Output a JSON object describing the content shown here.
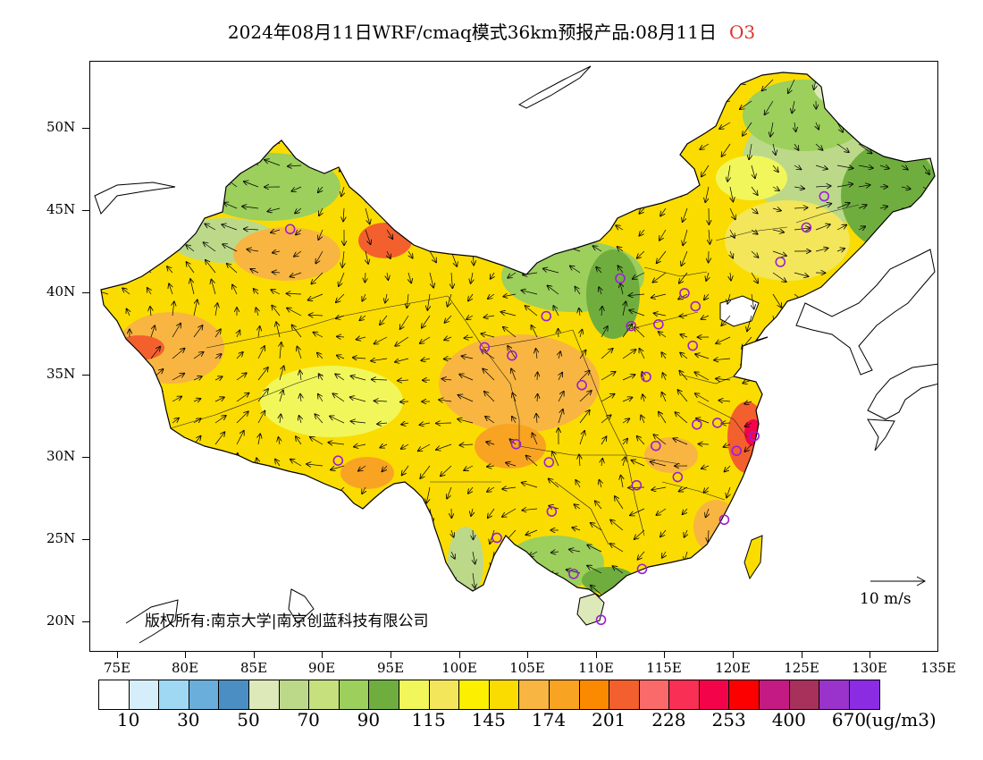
{
  "title": {
    "main": "2024年08月11日WRF/cmaq模式36km预报产品:08月11日",
    "species": "O3"
  },
  "axes": {
    "y_labels": [
      "50N",
      "45N",
      "40N",
      "35N",
      "30N",
      "25N",
      "20N"
    ],
    "x_labels": [
      "75E",
      "80E",
      "85E",
      "90E",
      "95E",
      "100E",
      "105E",
      "110E",
      "115E",
      "120E",
      "125E",
      "130E",
      "135E"
    ],
    "lon_range": [
      73,
      135
    ],
    "lat_range": [
      18,
      54
    ]
  },
  "copyright": "版权所有:南京大学|南京创蓝科技有限公司",
  "wind_reference": "10 m/s",
  "legend": {
    "colors": [
      "#ffffff",
      "#d6eefa",
      "#9fd8f3",
      "#6aaedc",
      "#4a8ec4",
      "#dde9b8",
      "#bcd98a",
      "#c6e07e",
      "#9ccf5c",
      "#6fae3e",
      "#f1f75a",
      "#f3e65a",
      "#fdef00",
      "#fbdc00",
      "#f8b541",
      "#f9a323",
      "#fc8a00",
      "#f3602d",
      "#fb6a6a",
      "#f92f55",
      "#f3044a",
      "#fc0000",
      "#c41a84",
      "#a7315b",
      "#9a33cc",
      "#8b2be2"
    ],
    "labels": [
      "10",
      "30",
      "50",
      "70",
      "90",
      "115",
      "145",
      "174",
      "201",
      "228",
      "253",
      "400",
      "670"
    ],
    "unit": "(ug/m3)"
  },
  "stations": [
    {
      "lon": 87.6,
      "lat": 43.8
    },
    {
      "lon": 101.8,
      "lat": 36.6
    },
    {
      "lon": 103.8,
      "lat": 36.1
    },
    {
      "lon": 106.3,
      "lat": 38.5
    },
    {
      "lon": 111.7,
      "lat": 40.8
    },
    {
      "lon": 112.5,
      "lat": 37.9
    },
    {
      "lon": 114.5,
      "lat": 38.0
    },
    {
      "lon": 116.4,
      "lat": 39.9
    },
    {
      "lon": 117.2,
      "lat": 39.1
    },
    {
      "lon": 117.0,
      "lat": 36.7
    },
    {
      "lon": 113.6,
      "lat": 34.8
    },
    {
      "lon": 108.9,
      "lat": 34.3
    },
    {
      "lon": 104.1,
      "lat": 30.7
    },
    {
      "lon": 106.5,
      "lat": 29.6
    },
    {
      "lon": 91.1,
      "lat": 29.7
    },
    {
      "lon": 102.7,
      "lat": 25.0
    },
    {
      "lon": 106.7,
      "lat": 26.6
    },
    {
      "lon": 108.3,
      "lat": 22.8
    },
    {
      "lon": 110.3,
      "lat": 20.0
    },
    {
      "lon": 113.3,
      "lat": 23.1
    },
    {
      "lon": 112.9,
      "lat": 28.2
    },
    {
      "lon": 115.9,
      "lat": 28.7
    },
    {
      "lon": 114.3,
      "lat": 30.6
    },
    {
      "lon": 117.3,
      "lat": 31.9
    },
    {
      "lon": 118.8,
      "lat": 32.0
    },
    {
      "lon": 120.2,
      "lat": 30.3
    },
    {
      "lon": 121.5,
      "lat": 31.2
    },
    {
      "lon": 119.3,
      "lat": 26.1
    },
    {
      "lon": 123.4,
      "lat": 41.8
    },
    {
      "lon": 125.3,
      "lat": 43.9
    },
    {
      "lon": 126.6,
      "lat": 45.8
    }
  ],
  "colors": {
    "station_ring": "#9b1fd6",
    "border_line": "#000000"
  }
}
